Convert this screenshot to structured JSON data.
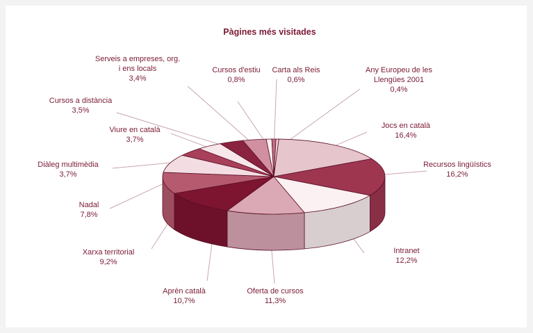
{
  "chart_data": {
    "type": "pie",
    "title": "Pàgines més visitades",
    "categories": [
      "Jocs en català",
      "Recursos lingüístics",
      "Intranet",
      "Oferta de cursos",
      "Aprèn català",
      "Xarxa territorial",
      "Nadal",
      "Diàleg multimèdia",
      "Viure en català",
      "Cursos a distància",
      "Serveis a empreses, org. i ens locals",
      "Cursos d'estiu",
      "Carta als Reis",
      "Any Europeu de les Llengües 2001"
    ],
    "values": [
      16.4,
      16.2,
      12.2,
      11.3,
      10.7,
      9.2,
      7.8,
      3.7,
      3.7,
      3.5,
      3.4,
      0.8,
      0.6,
      0.4
    ],
    "slices": [
      {
        "label_lines": [
          "Jocs en català",
          "16,4%"
        ],
        "color": "#e6c5cd"
      },
      {
        "label_lines": [
          "Recursos lingüístics",
          "16,2%"
        ],
        "color": "#9e3650"
      },
      {
        "label_lines": [
          "Intranet",
          "12,2%"
        ],
        "color": "#fbf0f2"
      },
      {
        "label_lines": [
          "Oferta de cursos",
          "11,3%"
        ],
        "color": "#dba8b6"
      },
      {
        "label_lines": [
          "Aprèn català",
          "10,7%"
        ],
        "color": "#7d1430"
      },
      {
        "label_lines": [
          "Xarxa territorial",
          "9,2%"
        ],
        "color": "#b65a70"
      },
      {
        "label_lines": [
          "Nadal",
          "7,8%"
        ],
        "color": "#f3dde3"
      },
      {
        "label_lines": [
          "Diàleg multimèdia",
          "3,7%"
        ],
        "color": "#a8405a"
      },
      {
        "label_lines": [
          "Viure en català",
          "3,7%"
        ],
        "color": "#f7e6ea"
      },
      {
        "label_lines": [
          "Cursos a distància",
          "3,5%"
        ],
        "color": "#8a2340"
      },
      {
        "label_lines": [
          "Serveis a empreses, org.",
          "i ens locals",
          "3,4%"
        ],
        "color": "#d090a2"
      },
      {
        "label_lines": [
          "Cursos d'estiu",
          "0,8%"
        ],
        "color": "#fbeef1"
      },
      {
        "label_lines": [
          "Carta als Reis",
          "0,6%"
        ],
        "color": "#c06f84"
      },
      {
        "label_lines": [
          "Any Europeu de les",
          "Llengües 2001",
          "0,4%"
        ],
        "color": "#ecd2d9"
      }
    ],
    "text_color": "#7a1a34",
    "leader_color": "#c9a5af",
    "edge_color": "#5a0f24"
  }
}
